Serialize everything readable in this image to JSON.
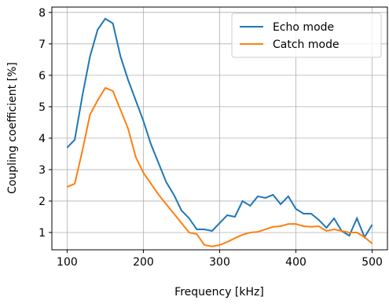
{
  "chart_data": {
    "type": "line",
    "x_label": "Frequency [kHz]",
    "y_label": "Coupling coefficient [%]",
    "x": [
      100,
      110,
      120,
      130,
      140,
      150,
      160,
      170,
      180,
      190,
      200,
      210,
      220,
      230,
      240,
      250,
      260,
      270,
      280,
      290,
      300,
      310,
      320,
      330,
      340,
      350,
      360,
      370,
      380,
      390,
      400,
      410,
      420,
      430,
      440,
      450,
      460,
      470,
      480,
      490,
      500
    ],
    "series": [
      {
        "name": "Echo mode",
        "color": "#1f77b4",
        "values": [
          3.7,
          3.95,
          5.35,
          6.6,
          7.45,
          7.8,
          7.65,
          6.6,
          5.85,
          5.2,
          4.55,
          3.8,
          3.2,
          2.6,
          2.2,
          1.7,
          1.45,
          1.1,
          1.1,
          1.05,
          1.3,
          1.55,
          1.5,
          2.0,
          1.85,
          2.15,
          2.1,
          2.2,
          1.9,
          2.15,
          1.75,
          1.6,
          1.6,
          1.4,
          1.15,
          1.45,
          1.05,
          0.9,
          1.45,
          0.85,
          1.25
        ]
      },
      {
        "name": "Catch mode",
        "color": "#ff7f0e",
        "values": [
          2.45,
          2.55,
          3.6,
          4.75,
          5.2,
          5.6,
          5.5,
          4.9,
          4.3,
          3.4,
          2.9,
          2.55,
          2.2,
          1.9,
          1.6,
          1.3,
          1.0,
          0.95,
          0.6,
          0.56,
          0.6,
          0.7,
          0.82,
          0.93,
          1.0,
          1.02,
          1.1,
          1.18,
          1.2,
          1.27,
          1.27,
          1.2,
          1.18,
          1.2,
          1.05,
          1.1,
          1.05,
          1.0,
          1.0,
          0.85,
          0.65
        ]
      }
    ],
    "xlim": [
      80,
      520
    ],
    "ylim": [
      0.45,
      8.17
    ],
    "xticks": [
      100,
      200,
      300,
      400,
      500
    ],
    "yticks": [
      1,
      2,
      3,
      4,
      5,
      6,
      7,
      8
    ],
    "grid": true,
    "legend": "upper right"
  }
}
